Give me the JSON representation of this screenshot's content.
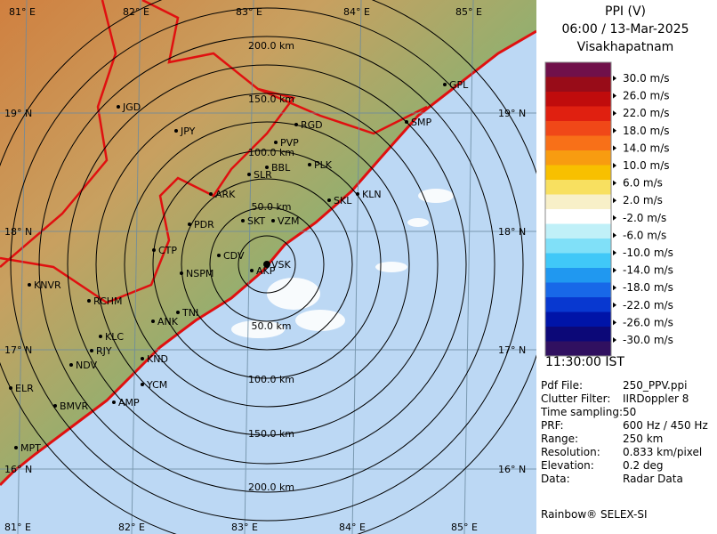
{
  "header": {
    "title": "PPI (V)",
    "datetime": "06:00 / 13-Mar-2025",
    "station": "Visakhapatnam"
  },
  "legend": {
    "colors": [
      "#70104a",
      "#980c18",
      "#c00c0c",
      "#e02010",
      "#f04818",
      "#f87018",
      "#f89c10",
      "#f8c000",
      "#f8e060",
      "#f8f0c8",
      "#ffffff",
      "#c0f0f8",
      "#80e0f8",
      "#40c8f8",
      "#2098f0",
      "#1868e8",
      "#0838d0",
      "#0014a8",
      "#0c0878",
      "#301060"
    ],
    "labels": [
      "30.0 m/s",
      "26.0 m/s",
      "22.0 m/s",
      "18.0 m/s",
      "14.0 m/s",
      "10.0 m/s",
      "6.0 m/s",
      "2.0 m/s",
      "-2.0 m/s",
      "-6.0 m/s",
      "-10.0 m/s",
      "-14.0 m/s",
      "-18.0 m/s",
      "-22.0 m/s",
      "-26.0 m/s",
      "-30.0 m/s"
    ]
  },
  "time": "11:30:00 IST",
  "info": [
    [
      "Pdf File:",
      "250_PPV.ppi"
    ],
    [
      "Clutter Filter:",
      "IIRDoppler 8"
    ],
    [
      "Time sampling:",
      "50"
    ],
    [
      "PRF:",
      "600 Hz / 450 Hz"
    ],
    [
      "Range:",
      "250 km"
    ],
    [
      "Resolution:",
      "0.833 km/pixel"
    ],
    [
      "Elevation:",
      "0.2 deg"
    ],
    [
      "Data:",
      "Radar Data"
    ]
  ],
  "footer": "Rainbow® SELEX-SI",
  "map": {
    "lon_labels": [
      "81° E",
      "82° E",
      "83° E",
      "84° E",
      "85° E"
    ],
    "lat_labels": [
      "19° N",
      "18° N",
      "17° N",
      "16° N"
    ],
    "ring_labels": [
      "200.0 km",
      "150.0 km",
      "100.0 km",
      "50.0 km",
      "50.0 km",
      "100.0 km",
      "150.0 km",
      "200.0 km"
    ],
    "cities": [
      "JGD",
      "JPY",
      "RGD",
      "PVP",
      "BBL",
      "PLK",
      "SMP",
      "GPL",
      "SLR",
      "ARK",
      "SKL",
      "KLN",
      "PDR",
      "SKT",
      "VZM",
      "CTP",
      "CDV",
      "NSPM",
      "AKP",
      "VSK",
      "KNVR",
      "RCHM",
      "ANK",
      "TNI",
      "KLC",
      "RJY",
      "NDV",
      "KND",
      "YCM",
      "ELR",
      "BMVR",
      "AMP",
      "MPT"
    ]
  }
}
